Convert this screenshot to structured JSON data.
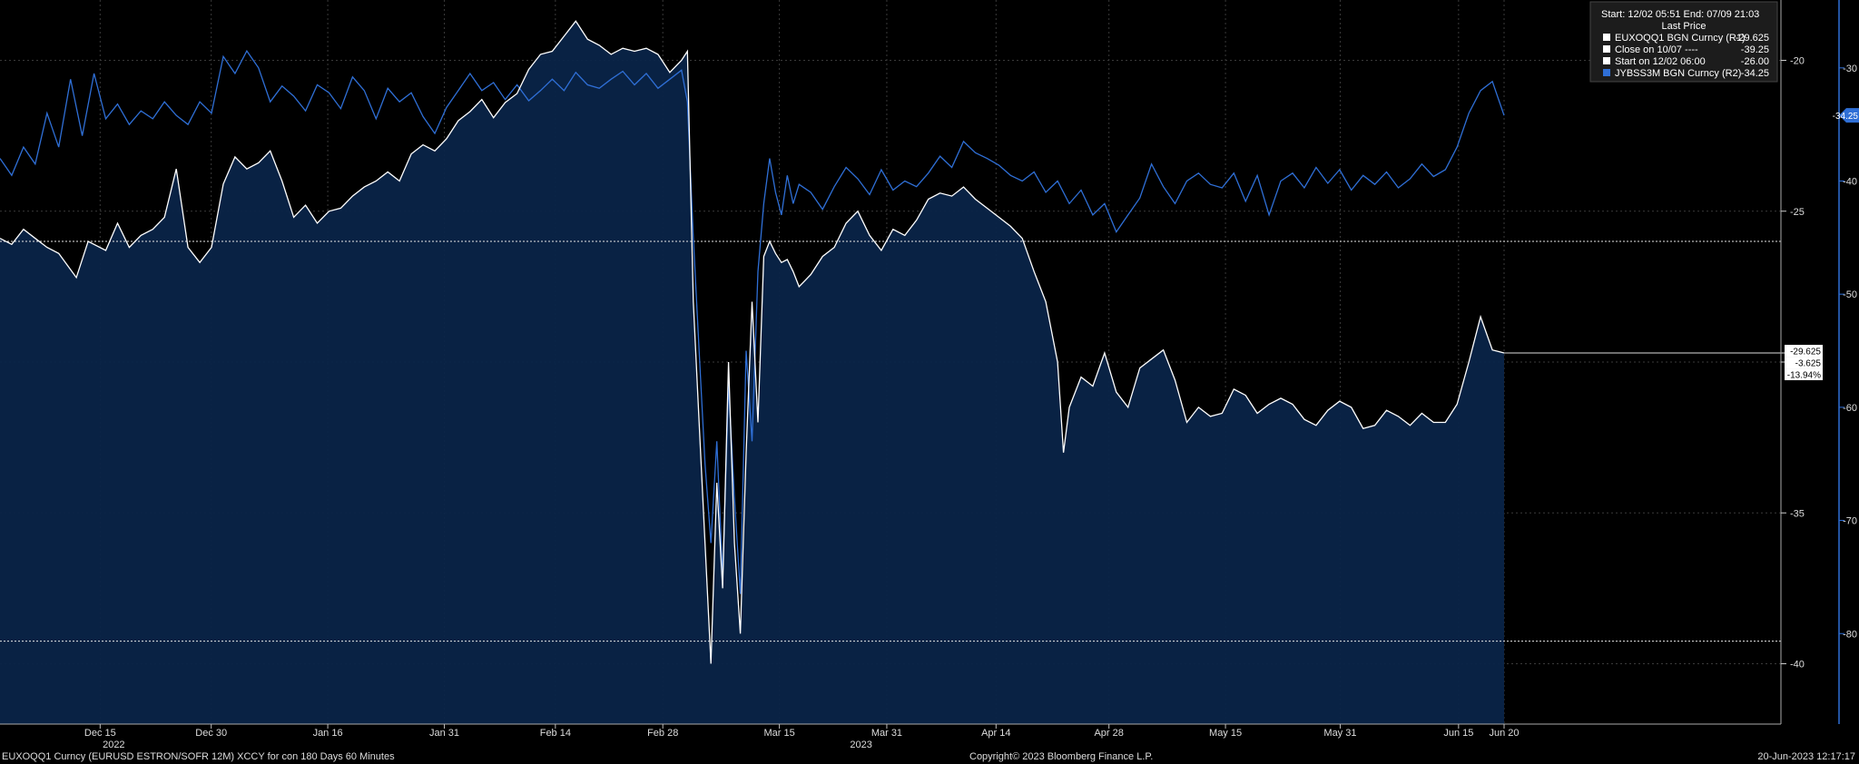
{
  "chart_data": {
    "type": "line",
    "x_ticks": [
      "Dec 15",
      "Dec 30",
      "Jan 16",
      "Jan 31",
      "Feb 14",
      "Feb 28",
      "Mar 15",
      "Mar 31",
      "Apr 14",
      "Apr 28",
      "May 15",
      "May 31",
      "Jun 15",
      "Jun 20"
    ],
    "x_year_labels": [
      {
        "text": "2022",
        "at": "Dec 15"
      },
      {
        "text": "2023",
        "at": "Mar 15"
      }
    ],
    "axis_r1": {
      "range": [
        -42,
        -18
      ],
      "ticks": [
        -20,
        -25,
        -30,
        -35,
        -40
      ]
    },
    "axis_r2": {
      "range": [
        -88,
        -24
      ],
      "ticks": [
        -30,
        -40,
        -50,
        -60,
        -70,
        -80
      ]
    },
    "legend": {
      "header": "Start: 12/02 05:51 End: 07/09 21:03",
      "subheader": "Last Price",
      "entries": [
        {
          "label": "EUXOQQ1 BGN Curncy  (R1)",
          "value": "-29.625",
          "color": "#ffffff"
        },
        {
          "label": "Close on 10/07  ----",
          "value": "-39.25",
          "color": "#ffffff"
        },
        {
          "label": "Start on 12/02 06:00",
          "value": "-26.00",
          "color": "#ffffff"
        },
        {
          "label": "JYBSS3M BGN Curncy  (R2)",
          "value": "-34.25",
          "color": "#2f6fd6"
        }
      ]
    },
    "series": [
      {
        "name": "EUXOQQ1 BGN Curncy",
        "axis": "R1",
        "color": "#ffffff",
        "points": [
          [
            0.0,
            -25.9
          ],
          [
            0.2,
            -26.1
          ],
          [
            0.4,
            -25.6
          ],
          [
            0.6,
            -25.9
          ],
          [
            0.8,
            -26.2
          ],
          [
            1.0,
            -26.4
          ],
          [
            1.3,
            -27.2
          ],
          [
            1.5,
            -26.0
          ],
          [
            1.8,
            -26.3
          ],
          [
            2.0,
            -25.4
          ],
          [
            2.2,
            -26.2
          ],
          [
            2.4,
            -25.8
          ],
          [
            2.6,
            -25.6
          ],
          [
            2.8,
            -25.2
          ],
          [
            3.0,
            -23.6
          ],
          [
            3.2,
            -26.2
          ],
          [
            3.4,
            -26.7
          ],
          [
            3.6,
            -26.2
          ],
          [
            3.8,
            -24.1
          ],
          [
            4.0,
            -23.2
          ],
          [
            4.2,
            -23.6
          ],
          [
            4.4,
            -23.4
          ],
          [
            4.6,
            -23.0
          ],
          [
            4.8,
            -24.0
          ],
          [
            5.0,
            -25.2
          ],
          [
            5.2,
            -24.8
          ],
          [
            5.4,
            -25.4
          ],
          [
            5.6,
            -25.0
          ],
          [
            5.8,
            -24.9
          ],
          [
            6.0,
            -24.5
          ],
          [
            6.2,
            -24.2
          ],
          [
            6.4,
            -24.0
          ],
          [
            6.6,
            -23.7
          ],
          [
            6.8,
            -24.0
          ],
          [
            7.0,
            -23.1
          ],
          [
            7.2,
            -22.8
          ],
          [
            7.4,
            -23.0
          ],
          [
            7.6,
            -22.6
          ],
          [
            7.8,
            -22.0
          ],
          [
            8.0,
            -21.7
          ],
          [
            8.2,
            -21.3
          ],
          [
            8.4,
            -21.9
          ],
          [
            8.6,
            -21.4
          ],
          [
            8.8,
            -21.1
          ],
          [
            9.0,
            -20.3
          ],
          [
            9.2,
            -19.8
          ],
          [
            9.4,
            -19.7
          ],
          [
            9.6,
            -19.2
          ],
          [
            9.8,
            -18.7
          ],
          [
            10.0,
            -19.3
          ],
          [
            10.2,
            -19.5
          ],
          [
            10.4,
            -19.8
          ],
          [
            10.6,
            -19.6
          ],
          [
            10.8,
            -19.7
          ],
          [
            11.0,
            -19.6
          ],
          [
            11.2,
            -19.8
          ],
          [
            11.4,
            -20.4
          ],
          [
            11.6,
            -20.0
          ],
          [
            11.7,
            -19.7
          ],
          [
            11.8,
            -28.0
          ],
          [
            11.9,
            -32.0
          ],
          [
            12.0,
            -36.0
          ],
          [
            12.1,
            -40.0
          ],
          [
            12.2,
            -34.0
          ],
          [
            12.3,
            -37.5
          ],
          [
            12.4,
            -30.0
          ],
          [
            12.5,
            -36.0
          ],
          [
            12.6,
            -39.0
          ],
          [
            12.7,
            -33.0
          ],
          [
            12.8,
            -28.0
          ],
          [
            12.9,
            -32.0
          ],
          [
            13.0,
            -26.5
          ],
          [
            13.1,
            -26.0
          ],
          [
            13.2,
            -26.4
          ],
          [
            13.3,
            -26.7
          ],
          [
            13.4,
            -26.6
          ],
          [
            13.5,
            -27.0
          ],
          [
            13.6,
            -27.5
          ],
          [
            13.8,
            -27.1
          ],
          [
            14.0,
            -26.5
          ],
          [
            14.2,
            -26.2
          ],
          [
            14.4,
            -25.4
          ],
          [
            14.6,
            -25.0
          ],
          [
            14.8,
            -25.8
          ],
          [
            15.0,
            -26.3
          ],
          [
            15.2,
            -25.6
          ],
          [
            15.4,
            -25.8
          ],
          [
            15.6,
            -25.3
          ],
          [
            15.8,
            -24.6
          ],
          [
            16.0,
            -24.4
          ],
          [
            16.2,
            -24.5
          ],
          [
            16.4,
            -24.2
          ],
          [
            16.6,
            -24.6
          ],
          [
            16.8,
            -24.9
          ],
          [
            17.0,
            -25.2
          ],
          [
            17.2,
            -25.5
          ],
          [
            17.4,
            -25.9
          ],
          [
            17.6,
            -27.0
          ],
          [
            17.8,
            -28.0
          ],
          [
            17.9,
            -29.0
          ],
          [
            18.0,
            -30.0
          ],
          [
            18.1,
            -33.0
          ],
          [
            18.2,
            -31.5
          ],
          [
            18.4,
            -30.5
          ],
          [
            18.6,
            -30.8
          ],
          [
            18.8,
            -29.7
          ],
          [
            19.0,
            -31.0
          ],
          [
            19.2,
            -31.5
          ],
          [
            19.4,
            -30.2
          ],
          [
            19.6,
            -29.9
          ],
          [
            19.8,
            -29.6
          ],
          [
            20.0,
            -30.6
          ],
          [
            20.2,
            -32.0
          ],
          [
            20.4,
            -31.5
          ],
          [
            20.6,
            -31.8
          ],
          [
            20.8,
            -31.7
          ],
          [
            21.0,
            -30.9
          ],
          [
            21.2,
            -31.1
          ],
          [
            21.4,
            -31.7
          ],
          [
            21.6,
            -31.4
          ],
          [
            21.8,
            -31.2
          ],
          [
            22.0,
            -31.4
          ],
          [
            22.2,
            -31.9
          ],
          [
            22.4,
            -32.1
          ],
          [
            22.6,
            -31.6
          ],
          [
            22.8,
            -31.3
          ],
          [
            23.0,
            -31.5
          ],
          [
            23.2,
            -32.2
          ],
          [
            23.4,
            -32.1
          ],
          [
            23.6,
            -31.6
          ],
          [
            23.8,
            -31.8
          ],
          [
            24.0,
            -32.1
          ],
          [
            24.2,
            -31.7
          ],
          [
            24.4,
            -32.0
          ],
          [
            24.6,
            -32.0
          ],
          [
            24.8,
            -31.4
          ],
          [
            25.0,
            -30.0
          ],
          [
            25.2,
            -28.5
          ],
          [
            25.4,
            -29.6
          ],
          [
            25.6,
            -29.7
          ]
        ]
      },
      {
        "name": "JYBSS3M BGN Curncy",
        "axis": "R2",
        "color": "#2f6fd6",
        "points": [
          [
            0.0,
            -38.0
          ],
          [
            0.2,
            -39.5
          ],
          [
            0.4,
            -37.0
          ],
          [
            0.6,
            -38.5
          ],
          [
            0.8,
            -34.0
          ],
          [
            1.0,
            -37.0
          ],
          [
            1.2,
            -31.0
          ],
          [
            1.4,
            -36.0
          ],
          [
            1.6,
            -30.5
          ],
          [
            1.8,
            -34.5
          ],
          [
            2.0,
            -33.2
          ],
          [
            2.2,
            -35.0
          ],
          [
            2.4,
            -33.8
          ],
          [
            2.6,
            -34.5
          ],
          [
            2.8,
            -33.0
          ],
          [
            3.0,
            -34.2
          ],
          [
            3.2,
            -35.0
          ],
          [
            3.4,
            -33.0
          ],
          [
            3.6,
            -34.0
          ],
          [
            3.8,
            -29.0
          ],
          [
            4.0,
            -30.5
          ],
          [
            4.2,
            -28.5
          ],
          [
            4.4,
            -30.0
          ],
          [
            4.6,
            -33.0
          ],
          [
            4.8,
            -31.6
          ],
          [
            5.0,
            -32.5
          ],
          [
            5.2,
            -33.8
          ],
          [
            5.4,
            -31.5
          ],
          [
            5.6,
            -32.2
          ],
          [
            5.8,
            -33.6
          ],
          [
            6.0,
            -30.8
          ],
          [
            6.2,
            -32.0
          ],
          [
            6.4,
            -34.5
          ],
          [
            6.6,
            -31.8
          ],
          [
            6.8,
            -33.0
          ],
          [
            7.0,
            -32.2
          ],
          [
            7.2,
            -34.3
          ],
          [
            7.4,
            -35.8
          ],
          [
            7.6,
            -33.5
          ],
          [
            7.8,
            -32.0
          ],
          [
            8.0,
            -30.5
          ],
          [
            8.2,
            -32.0
          ],
          [
            8.4,
            -31.3
          ],
          [
            8.6,
            -32.8
          ],
          [
            8.8,
            -31.5
          ],
          [
            9.0,
            -32.9
          ],
          [
            9.2,
            -32.0
          ],
          [
            9.4,
            -31.0
          ],
          [
            9.6,
            -32.0
          ],
          [
            9.8,
            -30.4
          ],
          [
            10.0,
            -31.5
          ],
          [
            10.2,
            -31.8
          ],
          [
            10.4,
            -31.0
          ],
          [
            10.6,
            -30.3
          ],
          [
            10.8,
            -31.5
          ],
          [
            11.0,
            -30.5
          ],
          [
            11.2,
            -31.8
          ],
          [
            11.4,
            -31.0
          ],
          [
            11.6,
            -30.2
          ],
          [
            11.7,
            -33.0
          ],
          [
            11.8,
            -45.0
          ],
          [
            11.9,
            -55.0
          ],
          [
            12.0,
            -65.0
          ],
          [
            12.1,
            -72.0
          ],
          [
            12.2,
            -63.0
          ],
          [
            12.3,
            -75.0
          ],
          [
            12.4,
            -58.0
          ],
          [
            12.5,
            -68.0
          ],
          [
            12.6,
            -76.5
          ],
          [
            12.7,
            -55.0
          ],
          [
            12.8,
            -63.0
          ],
          [
            12.9,
            -48.0
          ],
          [
            13.0,
            -42.0
          ],
          [
            13.1,
            -38.0
          ],
          [
            13.2,
            -41.0
          ],
          [
            13.3,
            -43.0
          ],
          [
            13.4,
            -39.5
          ],
          [
            13.5,
            -42.0
          ],
          [
            13.6,
            -40.3
          ],
          [
            13.8,
            -41.0
          ],
          [
            14.0,
            -42.5
          ],
          [
            14.2,
            -40.5
          ],
          [
            14.4,
            -38.8
          ],
          [
            14.6,
            -39.8
          ],
          [
            14.8,
            -41.2
          ],
          [
            15.0,
            -39.0
          ],
          [
            15.2,
            -40.8
          ],
          [
            15.4,
            -40.0
          ],
          [
            15.6,
            -40.5
          ],
          [
            15.8,
            -39.3
          ],
          [
            16.0,
            -37.8
          ],
          [
            16.2,
            -38.8
          ],
          [
            16.4,
            -36.5
          ],
          [
            16.6,
            -37.5
          ],
          [
            16.8,
            -38.0
          ],
          [
            17.0,
            -38.6
          ],
          [
            17.2,
            -39.5
          ],
          [
            17.4,
            -40.0
          ],
          [
            17.6,
            -39.2
          ],
          [
            17.8,
            -41.0
          ],
          [
            18.0,
            -40.0
          ],
          [
            18.2,
            -42.0
          ],
          [
            18.4,
            -40.8
          ],
          [
            18.6,
            -43.0
          ],
          [
            18.8,
            -42.0
          ],
          [
            19.0,
            -44.5
          ],
          [
            19.2,
            -43.0
          ],
          [
            19.4,
            -41.5
          ],
          [
            19.6,
            -38.5
          ],
          [
            19.8,
            -40.5
          ],
          [
            20.0,
            -42.0
          ],
          [
            20.2,
            -40.0
          ],
          [
            20.4,
            -39.3
          ],
          [
            20.6,
            -40.3
          ],
          [
            20.8,
            -40.6
          ],
          [
            21.0,
            -39.3
          ],
          [
            21.2,
            -41.8
          ],
          [
            21.4,
            -39.5
          ],
          [
            21.6,
            -43.0
          ],
          [
            21.8,
            -40.0
          ],
          [
            22.0,
            -39.3
          ],
          [
            22.2,
            -40.6
          ],
          [
            22.4,
            -38.8
          ],
          [
            22.6,
            -40.2
          ],
          [
            22.8,
            -39.0
          ],
          [
            23.0,
            -40.8
          ],
          [
            23.2,
            -39.5
          ],
          [
            23.4,
            -40.3
          ],
          [
            23.6,
            -39.2
          ],
          [
            23.8,
            -40.6
          ],
          [
            24.0,
            -39.8
          ],
          [
            24.2,
            -38.5
          ],
          [
            24.4,
            -39.6
          ],
          [
            24.6,
            -39.0
          ],
          [
            24.8,
            -37.0
          ],
          [
            25.0,
            -34.0
          ],
          [
            25.2,
            -32.0
          ],
          [
            25.4,
            -31.2
          ],
          [
            25.6,
            -34.2
          ]
        ]
      }
    ],
    "reference_lines": [
      {
        "label": "Close on 10/07",
        "value": -39.25,
        "axis": "R1"
      },
      {
        "label": "Start on 12/02 06:00",
        "value": -26.0,
        "axis": "R1"
      }
    ],
    "last_value_tags": {
      "r1": [
        "-29.625",
        "-3.625",
        "-13.94%"
      ],
      "r2": "-34.25"
    }
  },
  "footer": {
    "left": "EUXOQQ1 Curncy (EURUSD  ESTRON/SOFR 12M) XCCY for con 180 Days 60 Minutes",
    "center": "Copyright© 2023 Bloomberg Finance L.P.",
    "right": "20-Jun-2023 12:17:17"
  }
}
